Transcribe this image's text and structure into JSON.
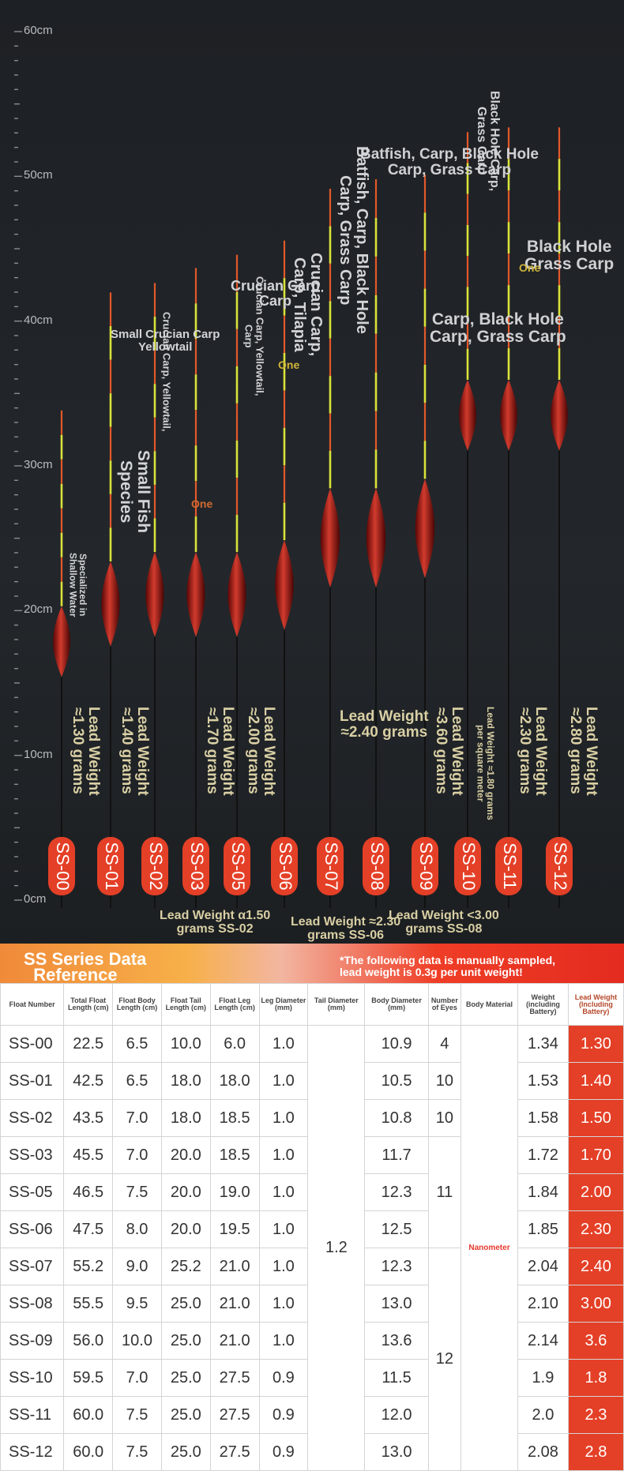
{
  "ruler": {
    "labels": [
      "60cm",
      "50cm",
      "40cm",
      "30cm",
      "20cm",
      "10cm",
      "0cm"
    ]
  },
  "floats": [
    {
      "id": "SS-00",
      "tip_top": 0.565,
      "body_y": 0.32,
      "body_h": 0.075,
      "lead": "Lead Weight\n≈1.30 grams",
      "species": "Specialized in\nShallow Water"
    },
    {
      "id": "SS-01",
      "tip_top": 0.69,
      "body_y": 0.36,
      "body_h": 0.09,
      "lead": "Lead Weight\n≈1.40 grams",
      "species": "Small Fish\nSpecies"
    },
    {
      "id": "SS-02",
      "tip_top": 0.7,
      "body_y": 0.37,
      "body_h": 0.09,
      "lead": "",
      "species": "Crucian Carp, Yellowtail,"
    },
    {
      "id": "SS-03",
      "tip_top": 0.716,
      "body_y": 0.37,
      "body_h": 0.09,
      "lead": "Lead Weight\n≈1.70 grams",
      "species": ""
    },
    {
      "id": "SS-05",
      "tip_top": 0.73,
      "body_y": 0.37,
      "body_h": 0.09,
      "lead": "Lead Weight\n≈2.00 grams",
      "species": "Crucian Carp, Yellowtail,\nCarp"
    },
    {
      "id": "SS-06",
      "tip_top": 0.745,
      "body_y": 0.38,
      "body_h": 0.095,
      "lead": "",
      "species": "Crucian Carp,\nCarp, Tilapia"
    },
    {
      "id": "SS-07",
      "tip_top": 0.8,
      "body_y": 0.43,
      "body_h": 0.105,
      "lead": "",
      "species": "Batfish, Carp, Black Hole\nCarp, Grass Carp"
    },
    {
      "id": "SS-08",
      "tip_top": 0.81,
      "body_y": 0.43,
      "body_h": 0.105,
      "lead": "",
      "species": ""
    },
    {
      "id": "SS-09",
      "tip_top": 0.815,
      "body_y": 0.44,
      "body_h": 0.105,
      "lead": "Lead Weight\n≈3.60 grams",
      "species": ""
    },
    {
      "id": "SS-10",
      "tip_top": 0.86,
      "body_y": 0.56,
      "body_h": 0.075,
      "lead": "Lead Weight ≈1.80 grams\nper square meter",
      "species": "Black Hole Carp,\nGrass Carp"
    },
    {
      "id": "SS-11",
      "tip_top": 0.865,
      "body_y": 0.56,
      "body_h": 0.075,
      "lead": "Lead Weight\n≈2.30 grams",
      "species": ""
    },
    {
      "id": "SS-12",
      "tip_top": 0.865,
      "body_y": 0.56,
      "body_h": 0.075,
      "lead": "Lead Weight\n≈2.80 grams",
      "species": ""
    }
  ],
  "annotations": {
    "small_crucian": "Small Crucian Carp\nYellowtail",
    "crucian_carp": "Crucian Carp\nCarp",
    "batfish_top": "Batfish, Carp, Black Hole\nCarp, Grass Carp",
    "black_hole_right": "Black Hole\nGrass Carp",
    "carp_black_hole": "Carp, Black Hole\nCarp, Grass Carp",
    "one_1": "One",
    "one_2": "One",
    "one_3": "One",
    "lead_240": "Lead Weight\n≈2.40 grams",
    "lead_ss02": "Lead Weight α1.50\ngrams SS-02",
    "lead_ss06": "Lead Weight ≈2.30\ngrams SS-06",
    "lead_ss08": "Lead Weight <3.00\ngrams SS-08"
  },
  "banner": {
    "title": "SS Series Data\n  Reference",
    "note": "*The following data is manually sampled,\nlead weight is 0.3g per unit weight!"
  },
  "table": {
    "headers": [
      "Float Number",
      "Total Float Length (cm)",
      "Float Body Length (cm)",
      "Float Tail Length (cm)",
      "Float Leg Length (cm)",
      "Leg Diameter (mm)",
      "Tail Diameter (mm)",
      "Body Diameter (mm)",
      "Number of Eyes",
      "Body Material",
      "Weight (including Battery)",
      "Lead Weight (Including Battery)"
    ],
    "rows": [
      [
        "SS-00",
        "22.5",
        "6.5",
        "10.0",
        "6.0",
        "1.0",
        "10.9",
        "4",
        "1.34",
        "1.30"
      ],
      [
        "SS-01",
        "42.5",
        "6.5",
        "18.0",
        "18.0",
        "1.0",
        "10.5",
        "10",
        "1.53",
        "1.40"
      ],
      [
        "SS-02",
        "43.5",
        "7.0",
        "18.0",
        "18.5",
        "1.0",
        "10.8",
        "10",
        "1.58",
        "1.50"
      ],
      [
        "SS-03",
        "45.5",
        "7.0",
        "20.0",
        "18.5",
        "1.0",
        "11.7",
        "",
        "1.72",
        "1.70"
      ],
      [
        "SS-05",
        "46.5",
        "7.5",
        "20.0",
        "19.0",
        "1.0",
        "12.3",
        "11",
        "1.84",
        "2.00"
      ],
      [
        "SS-06",
        "47.5",
        "8.0",
        "20.0",
        "19.5",
        "1.0",
        "12.5",
        "",
        "1.85",
        "2.30"
      ],
      [
        "SS-07",
        "55.2",
        "9.0",
        "25.2",
        "21.0",
        "1.0",
        "12.3",
        "",
        "2.04",
        "2.40"
      ],
      [
        "SS-08",
        "55.5",
        "9.5",
        "25.0",
        "21.0",
        "1.0",
        "13.0",
        "12",
        "2.10",
        "3.00"
      ],
      [
        "SS-09",
        "56.0",
        "10.0",
        "25.0",
        "21.0",
        "1.0",
        "13.6",
        "",
        "2.14",
        "3.6"
      ],
      [
        "SS-10",
        "59.5",
        "7.0",
        "25.0",
        "27.5",
        "0.9",
        "11.5",
        "",
        "1.9",
        "1.8"
      ],
      [
        "SS-11",
        "60.0",
        "7.5",
        "25.0",
        "27.5",
        "0.9",
        "12.0",
        "",
        "2.0",
        "2.3"
      ],
      [
        "SS-12",
        "60.0",
        "7.5",
        "25.0",
        "27.5",
        "0.9",
        "13.0",
        "",
        "2.08",
        "2.8"
      ]
    ],
    "tail_diameter": "1.2",
    "material": "Nanometer"
  },
  "colors": {
    "accent": "#e44027",
    "banner_orange": "#f08a3a",
    "photo_bg": "#1f2226",
    "float_body": "#8e1010",
    "tip_orange": "#e2592a",
    "tip_yellow": "#d9e23a"
  }
}
